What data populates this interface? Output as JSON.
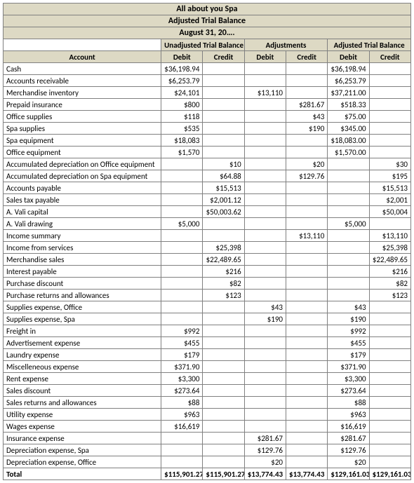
{
  "title1": "All about you Spa",
  "title2": "Adjusted Trial Balance",
  "title3": "August 31, 20….",
  "group1": "Unadjusted Trial Balance",
  "group2": "Adjustments",
  "group3": "Adjusted Trial Balance",
  "hdr_account": "Account",
  "hdr_debit": "Debit",
  "hdr_credit": "Credit",
  "total_label": "Total",
  "colors": {
    "header_bg": "#ddd9c4",
    "border": "#808080",
    "text": "#000000",
    "bg": "#ffffff"
  },
  "rows": [
    {
      "a": "Cash",
      "c": [
        "$36,198.94",
        "",
        "",
        "",
        "$36,198.94",
        ""
      ]
    },
    {
      "a": "Accounts receivable",
      "c": [
        "$6,253.79",
        "",
        "",
        "",
        "$6,253.79",
        ""
      ]
    },
    {
      "a": "Merchandise inventory",
      "c": [
        "$24,101",
        "",
        "$13,110",
        "",
        "$37,211.00",
        ""
      ]
    },
    {
      "a": "Prepaid insurance",
      "c": [
        "$800",
        "",
        "",
        "$281.67",
        "$518.33",
        ""
      ]
    },
    {
      "a": "Office supplies",
      "c": [
        "$118",
        "",
        "",
        "$43",
        "$75.00",
        ""
      ]
    },
    {
      "a": "Spa supplies",
      "c": [
        "$535",
        "",
        "",
        "$190",
        "$345.00",
        ""
      ]
    },
    {
      "a": "Spa equipment",
      "c": [
        "$18,083",
        "",
        "",
        "",
        "$18,083.00",
        ""
      ]
    },
    {
      "a": "Office equipment",
      "c": [
        "$1,570",
        "",
        "",
        "",
        "$1,570.00",
        ""
      ]
    },
    {
      "a": "Accumulated depreciation on Office equipment",
      "c": [
        "",
        "$10",
        "",
        "$20",
        "",
        "$30"
      ]
    },
    {
      "a": "Accumulated depreciation on Spa equipment",
      "c": [
        "",
        "$64.88",
        "",
        "$129.76",
        "",
        "$195"
      ]
    },
    {
      "a": "Accounts payable",
      "c": [
        "",
        "$15,513",
        "",
        "",
        "",
        "$15,513"
      ]
    },
    {
      "a": "Sales tax payable",
      "c": [
        "",
        "$2,001.12",
        "",
        "",
        "",
        "$2,001"
      ]
    },
    {
      "a": "A. Vali capital",
      "c": [
        "",
        "$50,003.62",
        "",
        "",
        "",
        "$50,004"
      ]
    },
    {
      "a": "A. Vali drawing",
      "c": [
        "$5,000",
        "",
        "",
        "",
        "$5,000",
        ""
      ]
    },
    {
      "a": "Income summary",
      "c": [
        "",
        "",
        "",
        "$13,110",
        "",
        "$13,110"
      ]
    },
    {
      "a": "Income from services",
      "c": [
        "",
        "$25,398",
        "",
        "",
        "",
        "$25,398"
      ]
    },
    {
      "a": "Merchandise sales",
      "c": [
        "",
        "$22,489.65",
        "",
        "",
        "",
        "$22,489.65"
      ]
    },
    {
      "a": "Interest payable",
      "c": [
        "",
        "$216",
        "",
        "",
        "",
        "$216"
      ]
    },
    {
      "a": "Purchase discount",
      "c": [
        "",
        "$82",
        "",
        "",
        "",
        "$82"
      ]
    },
    {
      "a": "Purchase returns and allowances",
      "c": [
        "",
        "$123",
        "",
        "",
        "",
        "$123"
      ]
    },
    {
      "a": "Supplies expense, Office",
      "c": [
        "",
        "",
        "$43",
        "",
        "$43",
        ""
      ]
    },
    {
      "a": "Supplies expense, Spa",
      "c": [
        "",
        "",
        "$190",
        "",
        "$190",
        ""
      ]
    },
    {
      "a": "Freight in",
      "c": [
        "$992",
        "",
        "",
        "",
        "$992",
        ""
      ]
    },
    {
      "a": "Advertisement expense",
      "c": [
        "$455",
        "",
        "",
        "",
        "$455",
        ""
      ]
    },
    {
      "a": "Laundry expense",
      "c": [
        "$179",
        "",
        "",
        "",
        "$179",
        ""
      ]
    },
    {
      "a": "Miscelleneous expense",
      "c": [
        "$371.90",
        "",
        "",
        "",
        "$371.90",
        ""
      ]
    },
    {
      "a": "Rent expense",
      "c": [
        "$3,300",
        "",
        "",
        "",
        "$3,300",
        ""
      ]
    },
    {
      "a": "Sales discount",
      "c": [
        "$273.64",
        "",
        "",
        "",
        "$273.64",
        ""
      ]
    },
    {
      "a": "Sales returns and allowances",
      "c": [
        "$88",
        "",
        "",
        "",
        "$88",
        ""
      ]
    },
    {
      "a": "Utility expense",
      "c": [
        "$963",
        "",
        "",
        "",
        "$963",
        ""
      ]
    },
    {
      "a": "Wages expense",
      "c": [
        "$16,619",
        "",
        "",
        "",
        "$16,619",
        ""
      ]
    },
    {
      "a": "Insurance expense",
      "c": [
        "",
        "",
        "$281.67",
        "",
        "$281.67",
        ""
      ]
    },
    {
      "a": "Depreciation expense, Spa",
      "c": [
        "",
        "",
        "$129.76",
        "",
        "$129.76",
        ""
      ]
    },
    {
      "a": "Depreciation expense, Office",
      "c": [
        "",
        "",
        "$20",
        "",
        "$20",
        ""
      ]
    }
  ],
  "totals": [
    "$115,901.27",
    "$115,901.27",
    "$13,774.43",
    "$13,774.43",
    "$129,161.03",
    "$129,161.03"
  ]
}
